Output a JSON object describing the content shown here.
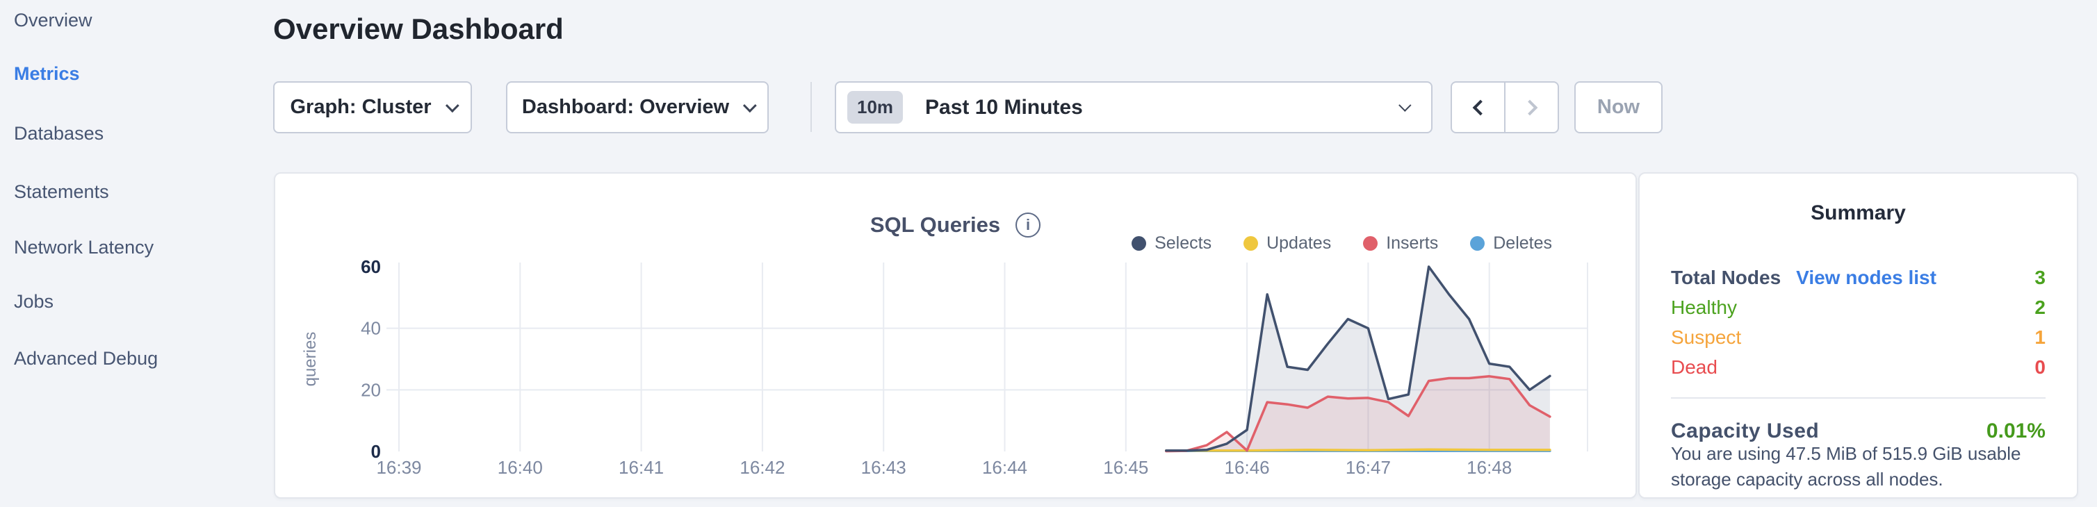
{
  "sidebar": {
    "items": [
      {
        "label": "Overview",
        "active": false
      },
      {
        "label": "Metrics",
        "active": true
      },
      {
        "label": "Databases",
        "active": false
      },
      {
        "label": "Statements",
        "active": false
      },
      {
        "label": "Network Latency",
        "active": false
      },
      {
        "label": "Jobs",
        "active": false
      },
      {
        "label": "Advanced Debug",
        "active": false
      }
    ]
  },
  "header": {
    "title": "Overview Dashboard"
  },
  "toolbar": {
    "graph_dropdown_label": "Graph: Cluster",
    "dashboard_dropdown_label": "Dashboard: Overview",
    "time_selector": {
      "badge": "10m",
      "label": "Past 10 Minutes"
    },
    "now_label": "Now"
  },
  "chart_data": {
    "type": "area",
    "title": "SQL Queries",
    "ylabel": "queries",
    "ylim": [
      0,
      60
    ],
    "yticks": [
      0,
      20,
      40,
      60
    ],
    "grid_y": [
      20,
      40
    ],
    "legend_position": "top-right",
    "categories": [
      "16:39",
      "16:40",
      "16:41",
      "16:42",
      "16:43",
      "16:44",
      "16:45",
      "16:46",
      "16:47",
      "16:48"
    ],
    "x_domain_minutes": [
      0,
      9.5
    ],
    "series": [
      {
        "name": "Selects",
        "color": "#41516e",
        "fill": "rgba(90,108,138,0.14)",
        "points": [
          [
            6.333,
            0.3
          ],
          [
            6.5,
            0.3
          ],
          [
            6.667,
            0.5
          ],
          [
            6.833,
            2.5
          ],
          [
            7.0,
            7
          ],
          [
            7.167,
            51
          ],
          [
            7.333,
            27.5
          ],
          [
            7.5,
            26.5
          ],
          [
            7.667,
            35
          ],
          [
            7.833,
            43
          ],
          [
            8.0,
            40
          ],
          [
            8.167,
            17
          ],
          [
            8.333,
            18.5
          ],
          [
            8.5,
            60
          ],
          [
            8.667,
            51
          ],
          [
            8.833,
            43
          ],
          [
            9.0,
            28.5
          ],
          [
            9.167,
            27.5
          ],
          [
            9.333,
            20
          ],
          [
            9.5,
            24.5
          ]
        ]
      },
      {
        "name": "Updates",
        "color": "#efc73e",
        "fill": "none",
        "points": [
          [
            6.333,
            0.3
          ],
          [
            7.0,
            0.3
          ],
          [
            7.5,
            0.5
          ],
          [
            8.0,
            0.4
          ],
          [
            8.5,
            0.6
          ],
          [
            9.0,
            0.5
          ],
          [
            9.5,
            0.5
          ]
        ]
      },
      {
        "name": "Inserts",
        "color": "#e0606a",
        "fill": "rgba(224,96,106,0.12)",
        "points": [
          [
            6.333,
            0.1
          ],
          [
            6.5,
            0.2
          ],
          [
            6.667,
            2
          ],
          [
            6.833,
            6.3
          ],
          [
            7.0,
            0.3
          ],
          [
            7.167,
            16
          ],
          [
            7.333,
            15.3
          ],
          [
            7.5,
            14.2
          ],
          [
            7.667,
            17.8
          ],
          [
            7.833,
            17.2
          ],
          [
            8.0,
            17.4
          ],
          [
            8.167,
            16
          ],
          [
            8.333,
            11.5
          ],
          [
            8.5,
            22.9
          ],
          [
            8.667,
            23.8
          ],
          [
            8.833,
            23.8
          ],
          [
            9.0,
            24.4
          ],
          [
            9.167,
            23.5
          ],
          [
            9.333,
            15
          ],
          [
            9.5,
            11.3
          ]
        ]
      },
      {
        "name": "Deletes",
        "color": "#5ba3d9",
        "fill": "none",
        "points": [
          [
            6.333,
            0.15
          ],
          [
            7.0,
            0.15
          ],
          [
            8.0,
            0.15
          ],
          [
            9.0,
            0.15
          ],
          [
            9.5,
            0.15
          ]
        ]
      }
    ]
  },
  "summary": {
    "title": "Summary",
    "total_nodes_label": "Total Nodes",
    "view_nodes_link": "View nodes list",
    "total_nodes_value": "3",
    "total_nodes_color": "#4ba21e",
    "rows": [
      {
        "label": "Healthy",
        "value": "2",
        "color": "#4ba21e"
      },
      {
        "label": "Suspect",
        "value": "1",
        "color": "#f5a43b"
      },
      {
        "label": "Dead",
        "value": "0",
        "color": "#e84c4f"
      }
    ],
    "capacity_label": "Capacity Used",
    "capacity_value": "0.01%",
    "capacity_color": "#459a1c",
    "capacity_description": "You are using 47.5 MiB of 515.9 GiB usable storage capacity across all nodes."
  },
  "colors": {
    "accent_blue": "#3a7de4",
    "axis_text": "#7d88a0",
    "axis_text_bold": "#1c2b49",
    "gridline": "#e8ebf1"
  }
}
